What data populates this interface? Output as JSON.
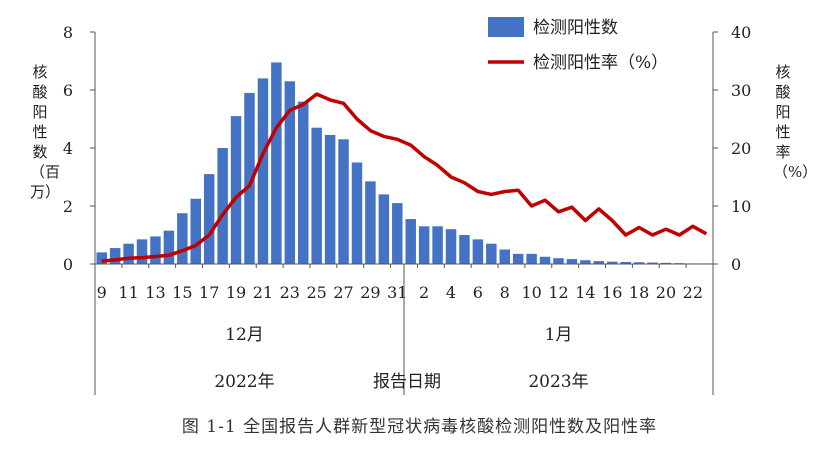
{
  "chart_data": {
    "type": "bar",
    "categories": [
      "9",
      "10",
      "11",
      "12",
      "13",
      "14",
      "15",
      "16",
      "17",
      "18",
      "19",
      "20",
      "21",
      "22",
      "23",
      "24",
      "25",
      "26",
      "27",
      "28",
      "29",
      "30",
      "31",
      "1",
      "2",
      "3",
      "4",
      "5",
      "6",
      "7",
      "8",
      "9",
      "10",
      "11",
      "12",
      "13",
      "14",
      "15",
      "16",
      "17",
      "18",
      "19",
      "20",
      "21",
      "22",
      "23"
    ],
    "x_tick_labels": [
      "9",
      "11",
      "13",
      "15",
      "17",
      "19",
      "21",
      "23",
      "25",
      "27",
      "29",
      "31",
      "2",
      "4",
      "6",
      "8",
      "10",
      "12",
      "14",
      "16",
      "18",
      "20",
      "22"
    ],
    "month_labels": [
      "12月",
      "1月"
    ],
    "year_labels": [
      "2022年",
      "2023年"
    ],
    "xlabel": "报告日期",
    "ylabel_left": "核酸阳性数（百万）",
    "ylabel_right": "核酸阳性率（%）",
    "ylim_left": [
      0,
      8
    ],
    "ylim_right": [
      0,
      40
    ],
    "yticks_left": [
      "0",
      "2",
      "4",
      "6",
      "8"
    ],
    "yticks_right": [
      "0",
      "10",
      "20",
      "30",
      "40"
    ],
    "legend_placement": "top-right",
    "series": [
      {
        "name": "检测阳性数",
        "kind": "bar",
        "axis": "left",
        "color": "#4472C4",
        "values": [
          0.4,
          0.55,
          0.7,
          0.85,
          0.95,
          1.15,
          1.75,
          2.25,
          3.1,
          4.0,
          5.1,
          5.9,
          6.4,
          6.95,
          6.3,
          5.6,
          4.7,
          4.45,
          4.3,
          3.5,
          2.85,
          2.4,
          2.1,
          1.55,
          1.3,
          1.3,
          1.2,
          1.0,
          0.85,
          0.7,
          0.5,
          0.35,
          0.35,
          0.25,
          0.2,
          0.17,
          0.13,
          0.1,
          0.08,
          0.07,
          0.06,
          0.05,
          0.04,
          0.03,
          0.02,
          0.02
        ]
      },
      {
        "name": "检测阳性率（%）",
        "kind": "line",
        "axis": "right",
        "color": "#C00000",
        "values": [
          0.5,
          0.7,
          1.0,
          1.1,
          1.3,
          1.5,
          2.3,
          3.2,
          5.0,
          8.5,
          11.5,
          13.5,
          19.0,
          23.5,
          26.5,
          27.5,
          29.3,
          28.3,
          27.7,
          25.0,
          23.0,
          22.0,
          21.5,
          20.5,
          18.5,
          17.0,
          15.0,
          14.0,
          12.5,
          12.0,
          12.5,
          12.7,
          10.0,
          11.0,
          9.0,
          9.8,
          7.5,
          9.5,
          7.5,
          5.0,
          6.3,
          5.0,
          6.0,
          5.0,
          6.5,
          5.2
        ]
      }
    ]
  },
  "caption": "图 1-1  全国报告人群新型冠状病毒核酸检测阳性数及阳性率"
}
